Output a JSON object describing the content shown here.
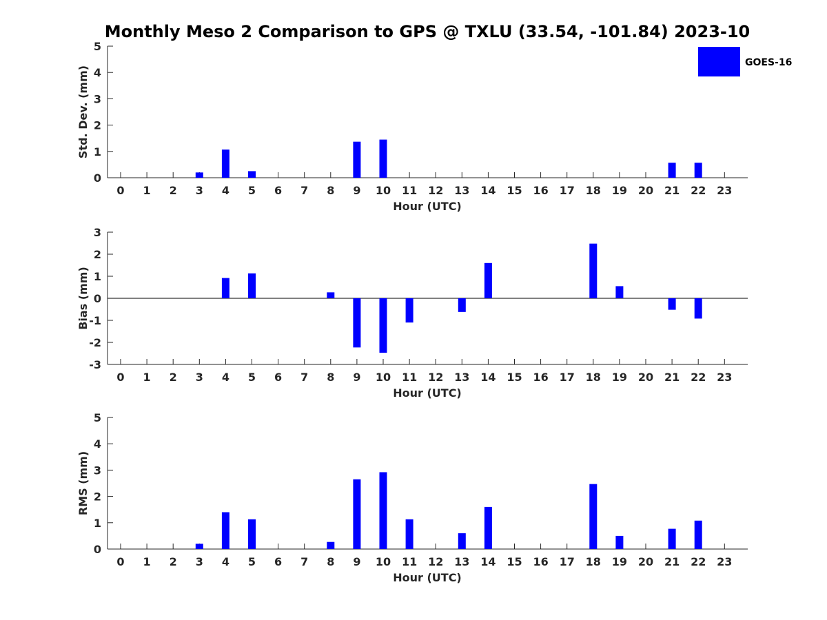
{
  "chart_data": {
    "title": "Monthly Meso 2 Comparison to GPS @ TXLU (33.54, -101.84) 2023-10",
    "type": "bar",
    "legend": {
      "placement": "top-right",
      "entries": [
        {
          "label": "GOES-16",
          "color": "#0000ff"
        }
      ]
    },
    "colors": {
      "bar": "#0000ff",
      "axis": "#262626",
      "zero_line": "#000000"
    },
    "subplots": [
      {
        "id": "std",
        "type": "bar",
        "ylabel": "Std. Dev. (mm)",
        "xlabel": "Hour (UTC)",
        "ylim": [
          0,
          5
        ],
        "yticks": [
          0,
          1,
          2,
          3,
          4,
          5
        ],
        "x": [
          0,
          1,
          2,
          3,
          4,
          5,
          6,
          7,
          8,
          9,
          10,
          11,
          12,
          13,
          14,
          15,
          16,
          17,
          18,
          19,
          20,
          21,
          22,
          23
        ],
        "series": [
          {
            "name": "GOES-16",
            "values": [
              null,
              null,
              null,
              0.2,
              1.07,
              0.25,
              null,
              null,
              null,
              1.37,
              1.45,
              null,
              null,
              null,
              null,
              null,
              null,
              null,
              null,
              null,
              null,
              0.57,
              0.57,
              null
            ]
          }
        ],
        "zero_line": false
      },
      {
        "id": "bias",
        "type": "bar",
        "ylabel": "Bias (mm)",
        "xlabel": "Hour (UTC)",
        "ylim": [
          -3,
          3
        ],
        "yticks": [
          -3,
          -2,
          -1,
          0,
          1,
          2,
          3
        ],
        "x": [
          0,
          1,
          2,
          3,
          4,
          5,
          6,
          7,
          8,
          9,
          10,
          11,
          12,
          13,
          14,
          15,
          16,
          17,
          18,
          19,
          20,
          21,
          22,
          23
        ],
        "series": [
          {
            "name": "GOES-16",
            "values": [
              null,
              null,
              null,
              null,
              0.92,
              1.13,
              null,
              null,
              0.27,
              -2.23,
              -2.47,
              -1.1,
              null,
              -0.62,
              1.6,
              null,
              null,
              null,
              2.48,
              0.55,
              null,
              -0.52,
              -0.92,
              null
            ]
          }
        ],
        "zero_line": true
      },
      {
        "id": "rms",
        "type": "bar",
        "ylabel": "RMS (mm)",
        "xlabel": "Hour (UTC)",
        "ylim": [
          0,
          5
        ],
        "yticks": [
          0,
          1,
          2,
          3,
          4,
          5
        ],
        "x": [
          0,
          1,
          2,
          3,
          4,
          5,
          6,
          7,
          8,
          9,
          10,
          11,
          12,
          13,
          14,
          15,
          16,
          17,
          18,
          19,
          20,
          21,
          22,
          23
        ],
        "series": [
          {
            "name": "GOES-16",
            "values": [
              null,
              null,
              null,
              0.2,
              1.4,
              1.13,
              null,
              null,
              0.27,
              2.65,
              2.92,
              1.13,
              null,
              0.6,
              1.6,
              null,
              null,
              null,
              2.47,
              0.5,
              null,
              0.77,
              1.08,
              null
            ]
          }
        ],
        "zero_line": false
      }
    ]
  }
}
